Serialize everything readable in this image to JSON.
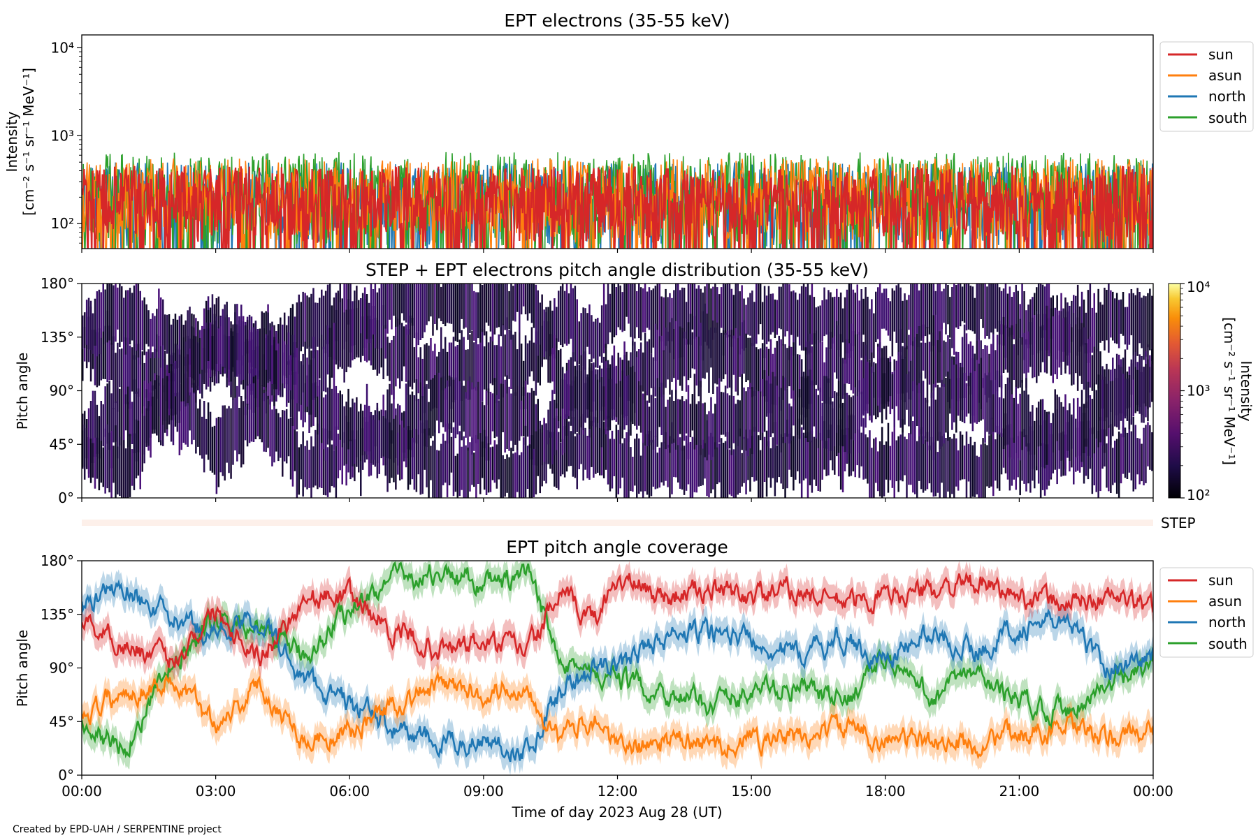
{
  "credit": "Created by EPD-UAH / SERPENTINE project",
  "colors": {
    "sun": "#d62728",
    "asun": "#ff7f0e",
    "north": "#1f77b4",
    "south": "#2ca02c"
  },
  "chart_data": [
    {
      "type": "line",
      "title": "EPT electrons (35-55 keV)",
      "ylabel_line1": "Intensity",
      "ylabel_line2": "[cm⁻² s⁻¹ sr⁻¹ MeV⁻¹]",
      "yscale": "log",
      "ylim": [
        52,
        14000
      ],
      "yticks": [
        "10²",
        "10³",
        "10⁴"
      ],
      "ytick_values": [
        100,
        1000,
        10000
      ],
      "x_range": [
        "2023-08-28 00:00",
        "2023-08-29 00:00"
      ],
      "legend": [
        "sun",
        "asun",
        "north",
        "south"
      ],
      "legend_position": "outside-right",
      "series": [
        {
          "name": "sun",
          "typical_range": [
            60,
            450
          ],
          "color": "#d62728"
        },
        {
          "name": "asun",
          "typical_range": [
            60,
            550
          ],
          "color": "#ff7f0e"
        },
        {
          "name": "north",
          "typical_range": [
            55,
            500
          ],
          "color": "#1f77b4"
        },
        {
          "name": "south",
          "typical_range": [
            55,
            650
          ],
          "color": "#2ca02c"
        }
      ]
    },
    {
      "type": "heatmap",
      "title": "STEP + EPT electrons pitch angle distribution (35-55 keV)",
      "ylabel": "Pitch angle",
      "ylim": [
        0,
        180
      ],
      "yticks": [
        "0°",
        "45°",
        "90°",
        "135°",
        "180°"
      ],
      "colorbar": {
        "label_line1": "Intensity",
        "label_line2": "[cm⁻² s⁻¹ sr⁻¹ MeV⁻¹]",
        "scale": "log",
        "range": [
          100,
          10000
        ],
        "ticks": [
          "10²",
          "10³",
          "10⁴"
        ],
        "colormap": "inferno"
      }
    },
    {
      "type": "bar",
      "label": "STEP",
      "color": "#fdf0ea"
    },
    {
      "type": "line",
      "title": "EPT pitch angle coverage",
      "ylabel": "Pitch angle",
      "ylim": [
        0,
        180
      ],
      "yticks": [
        "0°",
        "45°",
        "90°",
        "135°",
        "180°"
      ],
      "xlabel": "Time of day 2023 Aug 28 (UT)",
      "xticks": [
        "00:00",
        "03:00",
        "06:00",
        "09:00",
        "12:00",
        "15:00",
        "18:00",
        "21:00",
        "00:00"
      ],
      "xtick_hours": [
        0,
        3,
        6,
        9,
        12,
        15,
        18,
        21,
        24
      ],
      "legend": [
        "sun",
        "asun",
        "north",
        "south"
      ],
      "legend_position": "outside-right",
      "series": [
        {
          "name": "sun",
          "hours": [
            0,
            1,
            2,
            3,
            4,
            5,
            6,
            7,
            8,
            9,
            10,
            10.7,
            11.5,
            12,
            13,
            14,
            15,
            16,
            17,
            18,
            19,
            20,
            21,
            22,
            23,
            24
          ],
          "pitch": [
            130,
            110,
            95,
            140,
            100,
            150,
            150,
            120,
            105,
            110,
            105,
            150,
            130,
            165,
            150,
            155,
            150,
            155,
            145,
            150,
            155,
            160,
            150,
            145,
            150,
            140
          ]
        },
        {
          "name": "asun",
          "hours": [
            0,
            1,
            2,
            3,
            4,
            5,
            6,
            7,
            8,
            9,
            10,
            10.7,
            11.5,
            12,
            13,
            14,
            15,
            16,
            17,
            18,
            19,
            20,
            21,
            22,
            23,
            24
          ],
          "pitch": [
            50,
            70,
            80,
            45,
            75,
            30,
            35,
            60,
            75,
            70,
            75,
            30,
            50,
            20,
            30,
            25,
            30,
            30,
            40,
            30,
            30,
            25,
            35,
            40,
            30,
            40
          ]
        },
        {
          "name": "north",
          "hours": [
            0,
            1,
            2,
            3,
            4,
            5,
            6,
            7,
            8,
            9,
            10,
            10.7,
            11.5,
            12,
            13,
            14,
            15,
            16,
            17,
            18,
            19,
            20,
            21,
            22,
            23,
            24
          ],
          "pitch": [
            140,
            160,
            130,
            120,
            130,
            80,
            60,
            40,
            25,
            30,
            20,
            70,
            90,
            90,
            115,
            120,
            115,
            100,
            115,
            95,
            120,
            105,
            125,
            130,
            90,
            100
          ]
        },
        {
          "name": "south",
          "hours": [
            0,
            1,
            2,
            3,
            4,
            5,
            6,
            7,
            8,
            9,
            10,
            10.7,
            11.5,
            12,
            13,
            14,
            15,
            16,
            17,
            18,
            19,
            20,
            21,
            22,
            23,
            24
          ],
          "pitch": [
            40,
            25,
            90,
            130,
            120,
            100,
            140,
            165,
            170,
            160,
            165,
            105,
            80,
            80,
            70,
            60,
            70,
            75,
            60,
            100,
            65,
            85,
            60,
            55,
            75,
            90
          ]
        }
      ]
    }
  ]
}
